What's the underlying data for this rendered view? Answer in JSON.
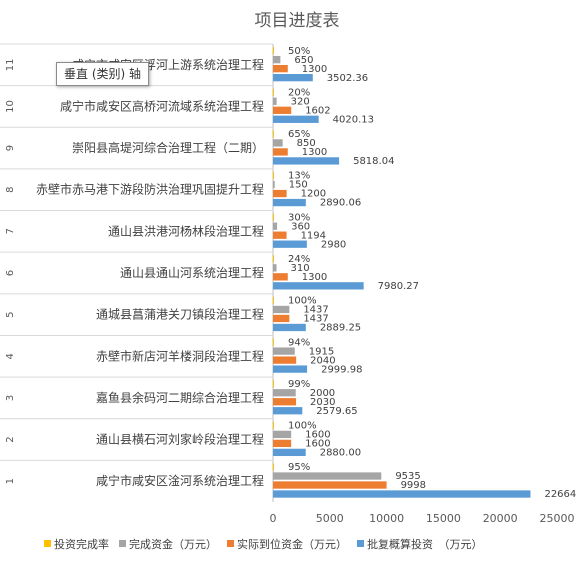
{
  "chart_data": {
    "type": "bar",
    "orientation": "horizontal",
    "title": "项目进度表",
    "xlim": [
      0,
      25000
    ],
    "xticks": [
      0,
      5000,
      10000,
      15000,
      20000,
      25000
    ],
    "grid": false,
    "legend_position": "bottom",
    "categories": [
      {
        "index": "1",
        "name": "咸宁市咸安区淦河系统治理工程"
      },
      {
        "index": "2",
        "name": "通山县横石河刘家岭段治理工程"
      },
      {
        "index": "3",
        "name": "嘉鱼县余码河二期综合治理工程"
      },
      {
        "index": "4",
        "name": "赤壁市新店河羊楼洞段治理工程"
      },
      {
        "index": "5",
        "name": "通城县菖蒲港关刀镇段治理工程"
      },
      {
        "index": "6",
        "name": "通山县通山河系统治理工程"
      },
      {
        "index": "7",
        "name": "通山县洪港河杨林段治理工程"
      },
      {
        "index": "8",
        "name": "赤壁市赤马港下游段防洪治理巩固提升工程"
      },
      {
        "index": "9",
        "name": "崇阳县高堤河综合治理工程（二期）"
      },
      {
        "index": "10",
        "name": "咸宁市咸安区高桥河流域系统治理工程"
      },
      {
        "index": "11",
        "name": "咸宁市咸安区浮河上游系统治理工程"
      }
    ],
    "series": [
      {
        "name": "投资完成率",
        "color": "#FFC000",
        "values": [
          0.95,
          1.0,
          0.99,
          0.94,
          1.0,
          0.24,
          0.3,
          0.13,
          0.65,
          0.2,
          0.5
        ],
        "labels": [
          "95%",
          "100%",
          "99%",
          "94%",
          "100%",
          "24%",
          "30%",
          "13%",
          "65%",
          "20%",
          "50%"
        ]
      },
      {
        "name": "完成资金（万元）",
        "color": "#A5A5A5",
        "values": [
          9535,
          1600,
          2000,
          1915,
          1437,
          310,
          360,
          150,
          850,
          320,
          650
        ],
        "labels": [
          "9535",
          "1600",
          "2000",
          "1915",
          "1437",
          "310",
          "360",
          "150",
          "850",
          "320",
          "650"
        ]
      },
      {
        "name": "实际到位资金（万元）",
        "color": "#ED7D31",
        "values": [
          9998,
          1600,
          2030,
          2040,
          1437,
          1300,
          1194,
          1200,
          1300,
          1602,
          1300
        ],
        "labels": [
          "9998",
          "1600",
          "2030",
          "2040",
          "1437",
          "1300",
          "1194",
          "1200",
          "1300",
          "1602",
          "1300"
        ]
      },
      {
        "name": "批复概算投资　（万元）",
        "color": "#5B9BD5",
        "values": [
          22664,
          2880,
          2579.65,
          2999.98,
          2889.25,
          7980.27,
          2980,
          2890.06,
          5818.04,
          4020.13,
          3502.36
        ],
        "labels": [
          "22664",
          "2880.00",
          "2579.65",
          "2999.98",
          "2889.25",
          "7980.27",
          "2980",
          "2890.06",
          "5818.04",
          "4020.13",
          "3502.36"
        ]
      }
    ]
  },
  "tooltip": {
    "text": "垂直 (类别) 轴"
  }
}
